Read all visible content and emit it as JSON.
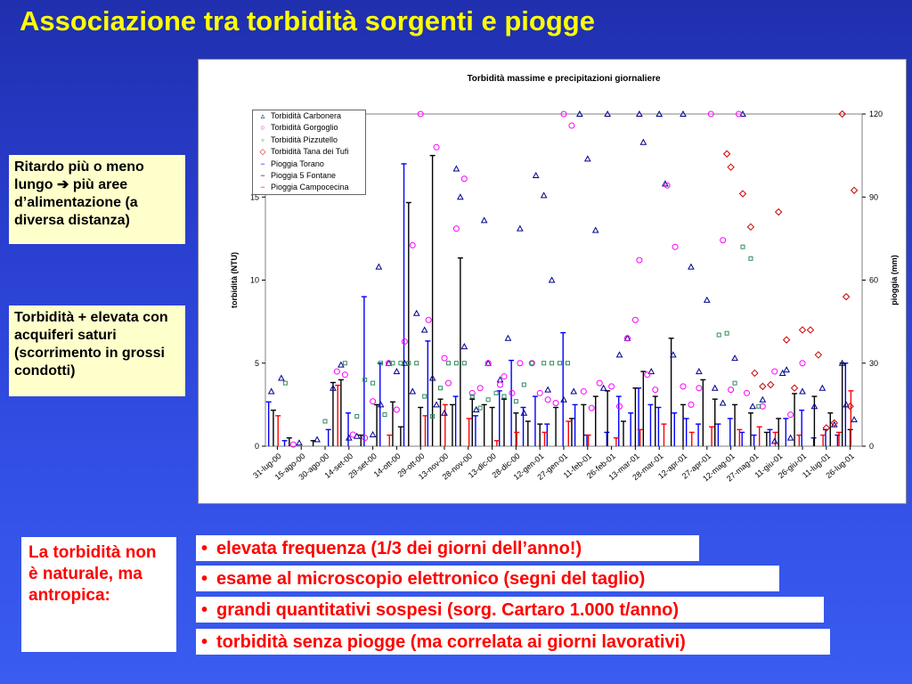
{
  "slide": {
    "title": "Associazione tra torbidità sorgenti e piogge"
  },
  "notes": {
    "note1": "Ritardo più o meno lungo ➔ più aree d’alimentazione (a diversa distanza)",
    "note2": "Torbidità + elevata con acquiferi saturi (scorrimento in grossi condotti)",
    "note3": "La torbidità non è naturale, ma antropica:"
  },
  "bullets": [
    "elevata frequenza (1/3 dei giorni dell’anno!)",
    "esame al microscopio elettronico (segni del taglio)",
    "grandi quantitativi sospesi (sorg. Cartaro 1.000 t/anno)",
    "torbidità senza piogge (ma correlata ai giorni lavorativi)"
  ],
  "bullet_symbol": "•",
  "colors": {
    "title": "#ffff00",
    "note_bg": "#ffffcc",
    "bullet_text": "#ff0000",
    "carbonera": "#00008b",
    "gorgoglio": "#ff00ff",
    "pizzutello": "#2e8b57",
    "tana_dei_tufi": "#cc0000",
    "pioggia_torano": "#0000ff",
    "pioggia_5_fontane": "#000000",
    "pioggia_campocecina": "#ff0000"
  },
  "chart_data": {
    "type": "scatter",
    "title": "Torbidità massime e precipitazioni giornaliere",
    "ylabel": "torbidità (NTU)",
    "y2label": "pioggia (mm)",
    "ylim": [
      0,
      20
    ],
    "y2lim": [
      0,
      120
    ],
    "yticks": [
      "0",
      "5",
      "10",
      "15"
    ],
    "y2ticks": [
      "0",
      "30",
      "60",
      "90",
      "120"
    ],
    "x_tick_labels": [
      "31-lug-00",
      "15-ago-00",
      "30-ago-00",
      "14-set-00",
      "29-set-00",
      "14-ott-00",
      "29-ott-00",
      "13-nov-00",
      "28-nov-00",
      "13-dic-00",
      "28-dic-00",
      "12-gen-01",
      "27-gen-01",
      "11-feb-01",
      "26-feb-01",
      "13-mar-01",
      "28-mar-01",
      "12-apr-01",
      "27-apr-01",
      "12-mag-01",
      "27-mag-01",
      "11-giu-01",
      "26-giu-01",
      "11-lug-01",
      "26-lug-01"
    ],
    "legend_position": "top-left",
    "legend": [
      {
        "name": "Torbidità Carbonera",
        "symbol": "triangle"
      },
      {
        "name": "Torbidità Gorgoglio",
        "symbol": "circle"
      },
      {
        "name": "Torbidità Pizzutello",
        "symbol": "square"
      },
      {
        "name": "Torbidità Tana dei Tufi",
        "symbol": "diamond"
      },
      {
        "name": "Pioggia Torano",
        "symbol": "bar"
      },
      {
        "name": "Pioggia 5 Fontane",
        "symbol": "bar"
      },
      {
        "name": "Pioggia Campocecina",
        "symbol": "bar"
      }
    ],
    "series": [
      {
        "name": "Torbidità Carbonera",
        "axis": "left",
        "points": [
          [
            3,
            3.3
          ],
          [
            8,
            4.1
          ],
          [
            17,
            0.2
          ],
          [
            26,
            0.4
          ],
          [
            34,
            3.5
          ],
          [
            38,
            4.9
          ],
          [
            42,
            0.5
          ],
          [
            46,
            0.6
          ],
          [
            54,
            0.7
          ],
          [
            57,
            10.8
          ],
          [
            58,
            2.5
          ],
          [
            62,
            5.0
          ],
          [
            66,
            4.5
          ],
          [
            70,
            5.0
          ],
          [
            74,
            3.3
          ],
          [
            76,
            8.0
          ],
          [
            80,
            7.0
          ],
          [
            84,
            4.1
          ],
          [
            86,
            2.5
          ],
          [
            90,
            2.0
          ],
          [
            96,
            16.7
          ],
          [
            98,
            15.0
          ],
          [
            100,
            6.0
          ],
          [
            106,
            2.2
          ],
          [
            110,
            13.6
          ],
          [
            112,
            5.0
          ],
          [
            118,
            4.0
          ],
          [
            122,
            6.5
          ],
          [
            128,
            13.1
          ],
          [
            130,
            2.0
          ],
          [
            136,
            16.3
          ],
          [
            140,
            15.1
          ],
          [
            142,
            3.4
          ],
          [
            144,
            10.0
          ],
          [
            150,
            2.8
          ],
          [
            155,
            3.3
          ],
          [
            158,
            20.0
          ],
          [
            162,
            17.3
          ],
          [
            166,
            13.0
          ],
          [
            170,
            3.5
          ],
          [
            172,
            20.0
          ],
          [
            178,
            5.5
          ],
          [
            182,
            6.5
          ],
          [
            188,
            20.0
          ],
          [
            190,
            18.3
          ],
          [
            194,
            4.5
          ],
          [
            198,
            20.0
          ],
          [
            201,
            15.8
          ],
          [
            205,
            5.5
          ],
          [
            210,
            20.0
          ],
          [
            214,
            10.8
          ],
          [
            218,
            4.5
          ],
          [
            222,
            8.8
          ],
          [
            226,
            3.5
          ],
          [
            230,
            2.6
          ],
          [
            236,
            5.3
          ],
          [
            240,
            20.0
          ],
          [
            245,
            2.4
          ],
          [
            250,
            2.8
          ],
          [
            256,
            0.3
          ],
          [
            260,
            4.4
          ],
          [
            262,
            4.6
          ],
          [
            264,
            0.5
          ],
          [
            270,
            3.3
          ],
          [
            276,
            2.4
          ],
          [
            280,
            3.5
          ],
          [
            286,
            1.3
          ],
          [
            290,
            5.0
          ],
          [
            292,
            2.5
          ],
          [
            296,
            1.6
          ]
        ]
      },
      {
        "name": "Torbidità Gorgoglio",
        "axis": "left",
        "points": [
          [
            14,
            0.1
          ],
          [
            36,
            4.5
          ],
          [
            40,
            4.3
          ],
          [
            44,
            0.7
          ],
          [
            50,
            0.5
          ],
          [
            54,
            2.7
          ],
          [
            62,
            5.0
          ],
          [
            66,
            2.2
          ],
          [
            70,
            6.3
          ],
          [
            74,
            12.1
          ],
          [
            78,
            20.0
          ],
          [
            82,
            7.6
          ],
          [
            86,
            18.0
          ],
          [
            90,
            5.3
          ],
          [
            92,
            3.8
          ],
          [
            96,
            13.1
          ],
          [
            100,
            16.1
          ],
          [
            104,
            3.2
          ],
          [
            108,
            3.5
          ],
          [
            112,
            5.0
          ],
          [
            118,
            3.7
          ],
          [
            120,
            4.2
          ],
          [
            124,
            3.2
          ],
          [
            128,
            5.0
          ],
          [
            134,
            5.0
          ],
          [
            138,
            3.2
          ],
          [
            142,
            2.8
          ],
          [
            146,
            2.6
          ],
          [
            150,
            20.0
          ],
          [
            154,
            19.3
          ],
          [
            160,
            3.3
          ],
          [
            164,
            2.3
          ],
          [
            168,
            3.8
          ],
          [
            174,
            3.6
          ],
          [
            178,
            2.4
          ],
          [
            182,
            6.5
          ],
          [
            186,
            7.6
          ],
          [
            188,
            11.2
          ],
          [
            192,
            4.3
          ],
          [
            196,
            3.4
          ],
          [
            202,
            15.7
          ],
          [
            206,
            12.0
          ],
          [
            210,
            3.6
          ],
          [
            214,
            2.5
          ],
          [
            218,
            3.5
          ],
          [
            224,
            20.0
          ],
          [
            230,
            12.4
          ],
          [
            234,
            3.4
          ],
          [
            238,
            20.0
          ],
          [
            242,
            3.2
          ],
          [
            250,
            2.4
          ],
          [
            256,
            4.5
          ],
          [
            264,
            1.9
          ],
          [
            270,
            5.0
          ]
        ]
      },
      {
        "name": "Torbidità Pizzutello",
        "axis": "left",
        "points": [
          [
            10,
            3.8
          ],
          [
            30,
            1.5
          ],
          [
            40,
            5.0
          ],
          [
            46,
            1.8
          ],
          [
            50,
            4.0
          ],
          [
            54,
            3.8
          ],
          [
            58,
            5.0
          ],
          [
            60,
            1.9
          ],
          [
            64,
            5.0
          ],
          [
            68,
            5.0
          ],
          [
            72,
            5.0
          ],
          [
            76,
            5.0
          ],
          [
            80,
            3.0
          ],
          [
            84,
            1.8
          ],
          [
            88,
            3.5
          ],
          [
            92,
            5.0
          ],
          [
            96,
            5.0
          ],
          [
            100,
            5.0
          ],
          [
            104,
            3.0
          ],
          [
            108,
            2.3
          ],
          [
            112,
            2.8
          ],
          [
            116,
            3.2
          ],
          [
            120,
            3.0
          ],
          [
            126,
            2.7
          ],
          [
            130,
            3.7
          ],
          [
            134,
            5.0
          ],
          [
            140,
            5.0
          ],
          [
            144,
            5.0
          ],
          [
            148,
            5.0
          ],
          [
            152,
            5.0
          ],
          [
            228,
            6.7
          ],
          [
            232,
            6.8
          ],
          [
            236,
            3.8
          ],
          [
            240,
            12.0
          ],
          [
            244,
            11.3
          ],
          [
            248,
            2.4
          ]
        ]
      },
      {
        "name": "Torbidità Tana dei Tufi",
        "axis": "left",
        "points": [
          [
            232,
            17.6
          ],
          [
            234,
            16.8
          ],
          [
            240,
            15.2
          ],
          [
            244,
            13.2
          ],
          [
            246,
            4.4
          ],
          [
            250,
            3.6
          ],
          [
            254,
            3.7
          ],
          [
            258,
            14.1
          ],
          [
            262,
            6.4
          ],
          [
            266,
            3.5
          ],
          [
            270,
            7.0
          ],
          [
            274,
            7.0
          ],
          [
            278,
            5.5
          ],
          [
            282,
            1.1
          ],
          [
            286,
            1.4
          ],
          [
            290,
            20.0
          ],
          [
            292,
            9.0
          ],
          [
            294,
            2.4
          ],
          [
            296,
            15.4
          ]
        ]
      },
      {
        "name": "Pioggia Torano",
        "axis": "right",
        "points": [
          [
            2,
            16
          ],
          [
            10,
            2
          ],
          [
            32,
            6
          ],
          [
            42,
            12
          ],
          [
            50,
            54
          ],
          [
            58,
            30
          ],
          [
            70,
            102
          ],
          [
            82,
            38
          ],
          [
            96,
            18
          ],
          [
            106,
            11
          ],
          [
            118,
            20
          ],
          [
            124,
            31
          ],
          [
            130,
            14
          ],
          [
            136,
            18
          ],
          [
            142,
            8
          ],
          [
            150,
            41
          ],
          [
            156,
            15
          ],
          [
            162,
            4
          ],
          [
            172,
            5
          ],
          [
            178,
            18
          ],
          [
            184,
            12
          ],
          [
            188,
            21
          ],
          [
            194,
            15
          ],
          [
            198,
            14
          ],
          [
            206,
            12
          ],
          [
            212,
            10
          ],
          [
            218,
            8
          ],
          [
            228,
            8
          ],
          [
            234,
            10
          ],
          [
            240,
            5
          ],
          [
            246,
            4
          ],
          [
            254,
            6
          ],
          [
            262,
            10
          ],
          [
            270,
            13
          ],
          [
            276,
            3
          ],
          [
            282,
            6
          ],
          [
            288,
            4
          ],
          [
            292,
            30
          ]
        ]
      },
      {
        "name": "Pioggia 5 Fontane",
        "axis": "right",
        "points": [
          [
            4,
            13
          ],
          [
            12,
            3
          ],
          [
            24,
            2
          ],
          [
            34,
            23
          ],
          [
            38,
            24
          ],
          [
            48,
            4
          ],
          [
            56,
            15
          ],
          [
            64,
            16
          ],
          [
            68,
            7
          ],
          [
            72,
            88
          ],
          [
            78,
            14
          ],
          [
            84,
            105
          ],
          [
            88,
            17
          ],
          [
            94,
            15
          ],
          [
            98,
            68
          ],
          [
            104,
            17
          ],
          [
            110,
            15
          ],
          [
            114,
            14
          ],
          [
            120,
            17
          ],
          [
            126,
            12
          ],
          [
            132,
            9
          ],
          [
            138,
            8
          ],
          [
            146,
            14
          ],
          [
            154,
            10
          ],
          [
            160,
            15
          ],
          [
            166,
            18
          ],
          [
            172,
            20
          ],
          [
            180,
            9
          ],
          [
            186,
            21
          ],
          [
            190,
            27
          ],
          [
            196,
            18
          ],
          [
            204,
            39
          ],
          [
            210,
            15
          ],
          [
            220,
            24
          ],
          [
            226,
            17
          ],
          [
            236,
            15
          ],
          [
            244,
            12
          ],
          [
            252,
            5
          ],
          [
            258,
            10
          ],
          [
            266,
            19
          ],
          [
            276,
            18
          ],
          [
            284,
            12
          ],
          [
            290,
            30
          ],
          [
            294,
            6
          ]
        ]
      },
      {
        "name": "Pioggia Campocecina",
        "axis": "right",
        "points": [
          [
            6,
            11
          ],
          [
            36,
            22
          ],
          [
            62,
            4
          ],
          [
            80,
            11
          ],
          [
            90,
            15
          ],
          [
            102,
            10
          ],
          [
            116,
            2
          ],
          [
            126,
            5
          ],
          [
            140,
            5
          ],
          [
            152,
            9
          ],
          [
            162,
            4
          ],
          [
            176,
            3
          ],
          [
            188,
            6
          ],
          [
            200,
            8
          ],
          [
            214,
            5
          ],
          [
            224,
            7
          ],
          [
            238,
            6
          ],
          [
            248,
            7
          ],
          [
            256,
            5
          ],
          [
            268,
            4
          ],
          [
            280,
            4
          ],
          [
            288,
            5
          ],
          [
            294,
            20
          ]
        ]
      }
    ]
  }
}
